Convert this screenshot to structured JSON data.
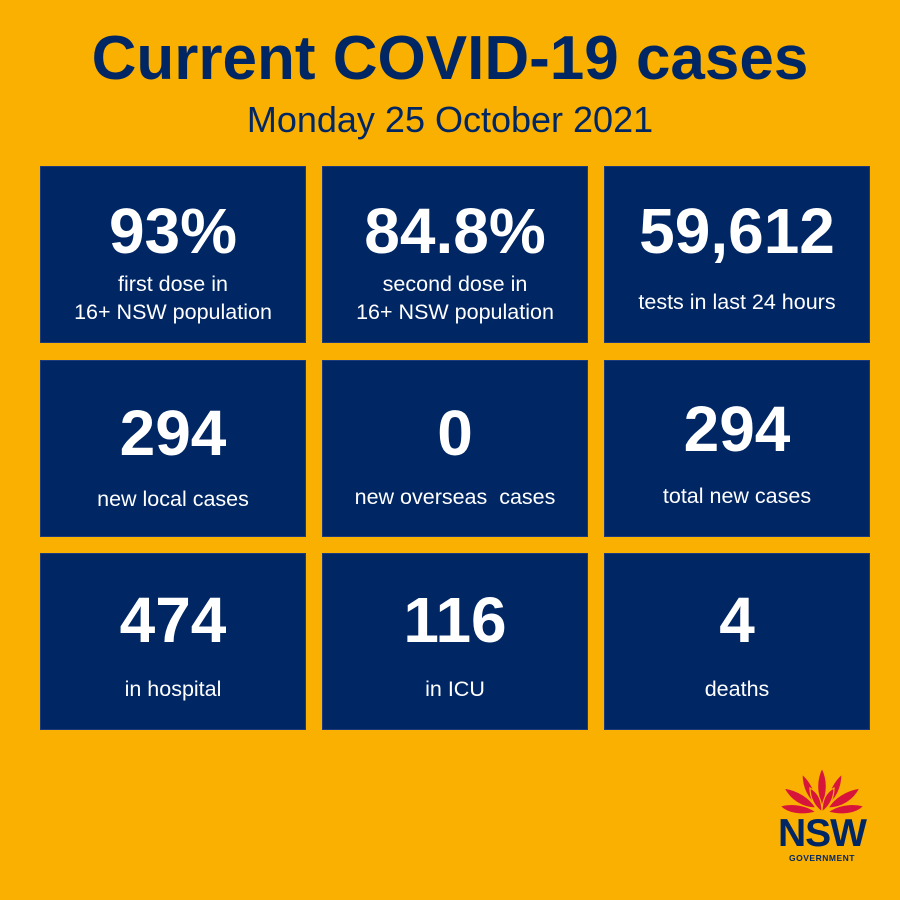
{
  "header": {
    "title": "Current COVID-19 cases",
    "date": "Monday 25 October 2021"
  },
  "stats": {
    "first_dose": {
      "value": "93%",
      "label_line1": "first dose in",
      "label_line2": "16+ NSW population"
    },
    "second_dose": {
      "value": "84.8%",
      "label_line1": "second dose in",
      "label_line2": "16+ NSW population"
    },
    "tests": {
      "value": "59,612",
      "label": "tests in last 24 hours"
    },
    "local_cases": {
      "value": "294",
      "label": "new local cases"
    },
    "overseas_cases": {
      "value": "0",
      "label": "new overseas  cases"
    },
    "total_cases": {
      "value": "294",
      "label": "total new cases"
    },
    "hospital": {
      "value": "474",
      "label": "in hospital"
    },
    "icu": {
      "value": "116",
      "label": "in ICU"
    },
    "deaths": {
      "value": "4",
      "label": "deaths"
    }
  },
  "logo": {
    "icon": "waratah-flower-icon",
    "name": "NSW",
    "subtitle": "GOVERNMENT"
  },
  "colors": {
    "background": "#F9B000",
    "tile": "#002664",
    "title_text": "#002664",
    "tile_text": "#FFFFFF",
    "logo_red": "#D7153A"
  }
}
